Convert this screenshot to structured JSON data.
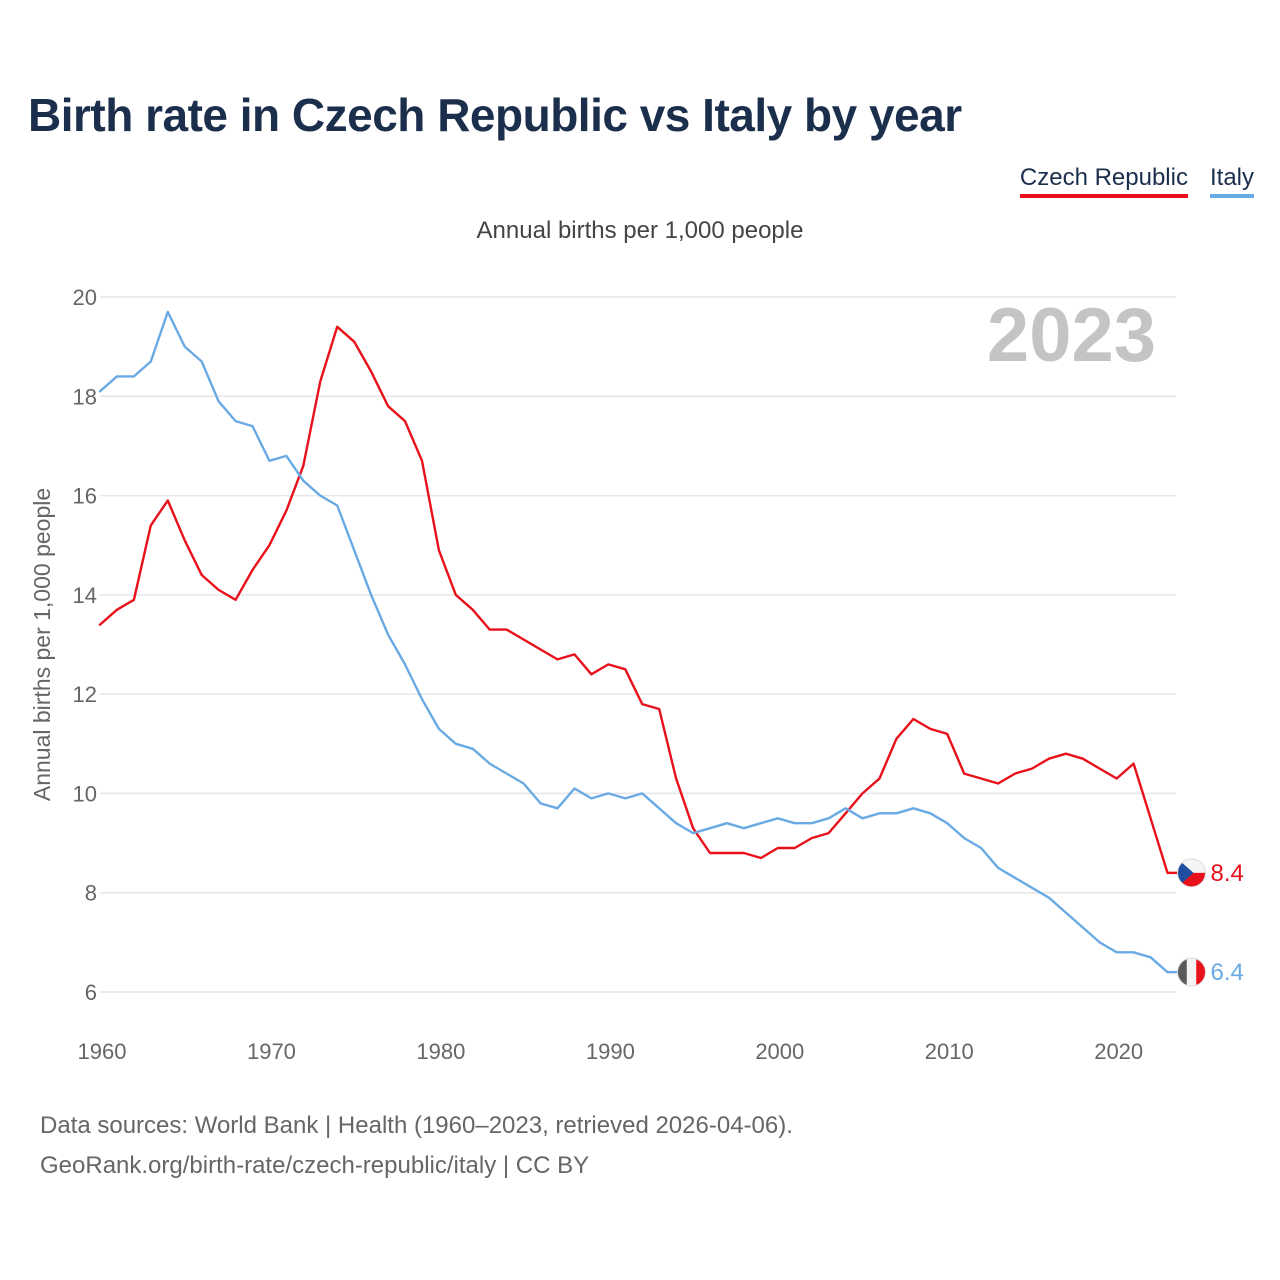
{
  "chart_data": {
    "type": "line",
    "title": "Birth rate in Czech Republic vs Italy by year",
    "subtitle": "Annual births per 1,000 people",
    "ylabel": "Annual births per 1,000 people",
    "xlabel": "",
    "current_year": "2023",
    "xlim": [
      1960,
      2023
    ],
    "ylim": [
      5,
      20
    ],
    "x_ticks": [
      1960,
      1970,
      1980,
      1990,
      2000,
      2010,
      2020
    ],
    "y_ticks": [
      6,
      8,
      10,
      12,
      14,
      16,
      18,
      20
    ],
    "years": [
      1960,
      1961,
      1962,
      1963,
      1964,
      1965,
      1966,
      1967,
      1968,
      1969,
      1970,
      1971,
      1972,
      1973,
      1974,
      1975,
      1976,
      1977,
      1978,
      1979,
      1980,
      1981,
      1982,
      1983,
      1984,
      1985,
      1986,
      1987,
      1988,
      1989,
      1990,
      1991,
      1992,
      1993,
      1994,
      1995,
      1996,
      1997,
      1998,
      1999,
      2000,
      2001,
      2002,
      2003,
      2004,
      2005,
      2006,
      2007,
      2008,
      2009,
      2010,
      2011,
      2012,
      2013,
      2014,
      2015,
      2016,
      2017,
      2018,
      2019,
      2020,
      2021,
      2022,
      2023
    ],
    "series": [
      {
        "name": "Czech Republic",
        "color": "#e8111b",
        "end_label": "8.4",
        "values": [
          13.4,
          13.7,
          13.9,
          15.4,
          15.9,
          15.1,
          14.4,
          14.1,
          13.9,
          14.5,
          15.0,
          15.7,
          16.6,
          18.3,
          19.4,
          19.1,
          18.5,
          17.8,
          17.5,
          16.7,
          14.9,
          14.0,
          13.7,
          13.3,
          13.3,
          13.1,
          12.9,
          12.7,
          12.8,
          12.4,
          12.6,
          12.5,
          11.8,
          11.7,
          10.3,
          9.3,
          8.8,
          8.8,
          8.8,
          8.7,
          8.9,
          8.9,
          9.1,
          9.2,
          9.6,
          10.0,
          10.3,
          11.1,
          11.5,
          11.3,
          11.2,
          10.4,
          10.3,
          10.2,
          10.4,
          10.5,
          10.7,
          10.8,
          10.7,
          10.5,
          10.3,
          10.6,
          9.5,
          8.4
        ]
      },
      {
        "name": "Italy",
        "color": "#6aaae4",
        "end_label": "6.4",
        "values": [
          18.1,
          18.4,
          18.4,
          18.7,
          19.7,
          19.0,
          18.7,
          17.9,
          17.5,
          17.4,
          16.7,
          16.8,
          16.3,
          16.0,
          15.8,
          14.9,
          14.0,
          13.2,
          12.6,
          11.9,
          11.3,
          11.0,
          10.9,
          10.6,
          10.4,
          10.2,
          9.8,
          9.7,
          10.1,
          9.9,
          10.0,
          9.9,
          10.0,
          9.7,
          9.4,
          9.2,
          9.3,
          9.4,
          9.3,
          9.4,
          9.5,
          9.4,
          9.4,
          9.5,
          9.7,
          9.5,
          9.6,
          9.6,
          9.7,
          9.6,
          9.4,
          9.1,
          8.9,
          8.5,
          8.3,
          8.1,
          7.9,
          7.6,
          7.3,
          7.0,
          6.8,
          6.8,
          6.7,
          6.4
        ]
      }
    ]
  },
  "legend": {
    "czech": "Czech Republic",
    "italy": "Italy"
  },
  "sources": {
    "line1": "Data sources: World Bank | Health (1960–2023, retrieved 2026-04-06).",
    "line2": "GeoRank.org/birth-rate/czech-republic/italy | CC BY"
  }
}
